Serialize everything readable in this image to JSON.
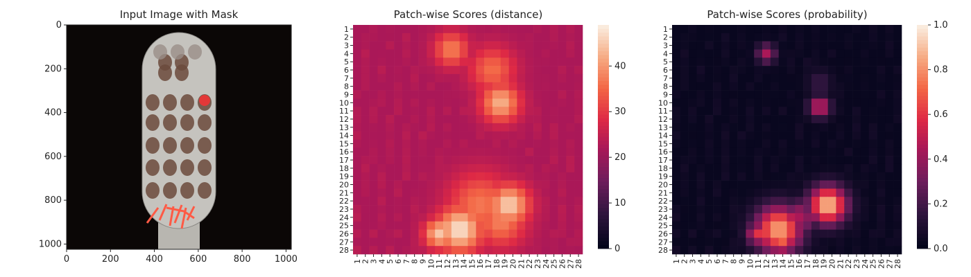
{
  "panels": {
    "image": {
      "title": "Input Image with Mask",
      "xticks": [
        0,
        200,
        400,
        600,
        800,
        1000
      ],
      "yticks": [
        0,
        200,
        400,
        600,
        800,
        1000
      ],
      "range": [
        0,
        1024
      ]
    },
    "distance": {
      "title": "Patch-wise Scores (distance)",
      "colorbar_ticks": [
        0,
        10,
        20,
        30,
        40
      ],
      "vmin": 0,
      "vmax": 49
    },
    "probability": {
      "title": "Patch-wise Scores (probability)",
      "colorbar_ticks": [
        "0.0",
        "0.2",
        "0.4",
        "0.6",
        "0.8",
        "1.0"
      ],
      "vmin": 0,
      "vmax": 1
    }
  },
  "chart_data": [
    {
      "type": "image",
      "title": "Input Image with Mask",
      "xlim": [
        0,
        1024
      ],
      "ylim": [
        1024,
        0
      ],
      "x_ticks": [
        0,
        200,
        400,
        600,
        800,
        1000
      ],
      "y_ticks": [
        0,
        200,
        400,
        600,
        800,
        1000
      ]
    },
    {
      "type": "heatmap",
      "title": "Patch-wise Scores (distance)",
      "rows": 28,
      "cols": 28,
      "row_labels": [
        "1",
        "2",
        "3",
        "4",
        "5",
        "6",
        "7",
        "8",
        "9",
        "10",
        "11",
        "12",
        "13",
        "14",
        "15",
        "16",
        "17",
        "18",
        "19",
        "20",
        "21",
        "22",
        "23",
        "24",
        "25",
        "26",
        "27",
        "28"
      ],
      "col_labels": [
        "1",
        "2",
        "3",
        "4",
        "5",
        "6",
        "7",
        "8",
        "9",
        "10",
        "11",
        "12",
        "13",
        "14",
        "15",
        "16",
        "17",
        "18",
        "19",
        "20",
        "21",
        "22",
        "23",
        "24",
        "25",
        "26",
        "27",
        "28"
      ],
      "colormap": "rocket",
      "vmin": 0,
      "vmax": 49,
      "colorbar_ticks": [
        0,
        10,
        20,
        30,
        40
      ],
      "baseline": 22,
      "hotspots": [
        {
          "row": 3.5,
          "col": 12.5,
          "value": 38,
          "radius": 1.5
        },
        {
          "row": 6,
          "col": 17.5,
          "value": 36,
          "radius": 2.0
        },
        {
          "row": 10,
          "col": 18.5,
          "value": 43,
          "radius": 1.7
        },
        {
          "row": 22.5,
          "col": 19.5,
          "value": 46,
          "radius": 1.8
        },
        {
          "row": 22.5,
          "col": 16,
          "value": 37,
          "radius": 2.8
        },
        {
          "row": 25.5,
          "col": 13.5,
          "value": 48,
          "radius": 2.0
        },
        {
          "row": 26,
          "col": 11,
          "value": 45,
          "radius": 1.3
        },
        {
          "row": 24.5,
          "col": 18.5,
          "value": 38,
          "radius": 2.2
        }
      ]
    },
    {
      "type": "heatmap",
      "title": "Patch-wise Scores (probability)",
      "rows": 28,
      "cols": 28,
      "row_labels": [
        "1",
        "2",
        "3",
        "4",
        "5",
        "6",
        "7",
        "8",
        "9",
        "10",
        "11",
        "12",
        "13",
        "14",
        "15",
        "16",
        "17",
        "18",
        "19",
        "20",
        "21",
        "22",
        "23",
        "24",
        "25",
        "26",
        "27",
        "28"
      ],
      "col_labels": [
        "1",
        "2",
        "3",
        "4",
        "5",
        "6",
        "7",
        "8",
        "9",
        "10",
        "11",
        "12",
        "13",
        "14",
        "15",
        "16",
        "17",
        "18",
        "19",
        "20",
        "21",
        "22",
        "23",
        "24",
        "25",
        "26",
        "27",
        "28"
      ],
      "colormap": "rocket",
      "vmin": 0,
      "vmax": 1,
      "colorbar_ticks": [
        0.0,
        0.2,
        0.4,
        0.6,
        0.8,
        1.0
      ],
      "baseline": 0.02,
      "hotspots": [
        {
          "row": 4,
          "col": 12,
          "value": 0.45,
          "radius": 0.8
        },
        {
          "row": 10.5,
          "col": 18.5,
          "value": 0.55,
          "radius": 0.9
        },
        {
          "row": 7.5,
          "col": 18.5,
          "value": 0.18,
          "radius": 1.0
        },
        {
          "row": 22.5,
          "col": 19.5,
          "value": 0.92,
          "radius": 1.6
        },
        {
          "row": 25.5,
          "col": 13.5,
          "value": 0.85,
          "radius": 2.0
        },
        {
          "row": 26,
          "col": 11,
          "value": 0.6,
          "radius": 1.0
        },
        {
          "row": 27,
          "col": 14,
          "value": 0.7,
          "radius": 1.0
        },
        {
          "row": 24,
          "col": 16,
          "value": 0.45,
          "radius": 1.5
        }
      ]
    }
  ]
}
